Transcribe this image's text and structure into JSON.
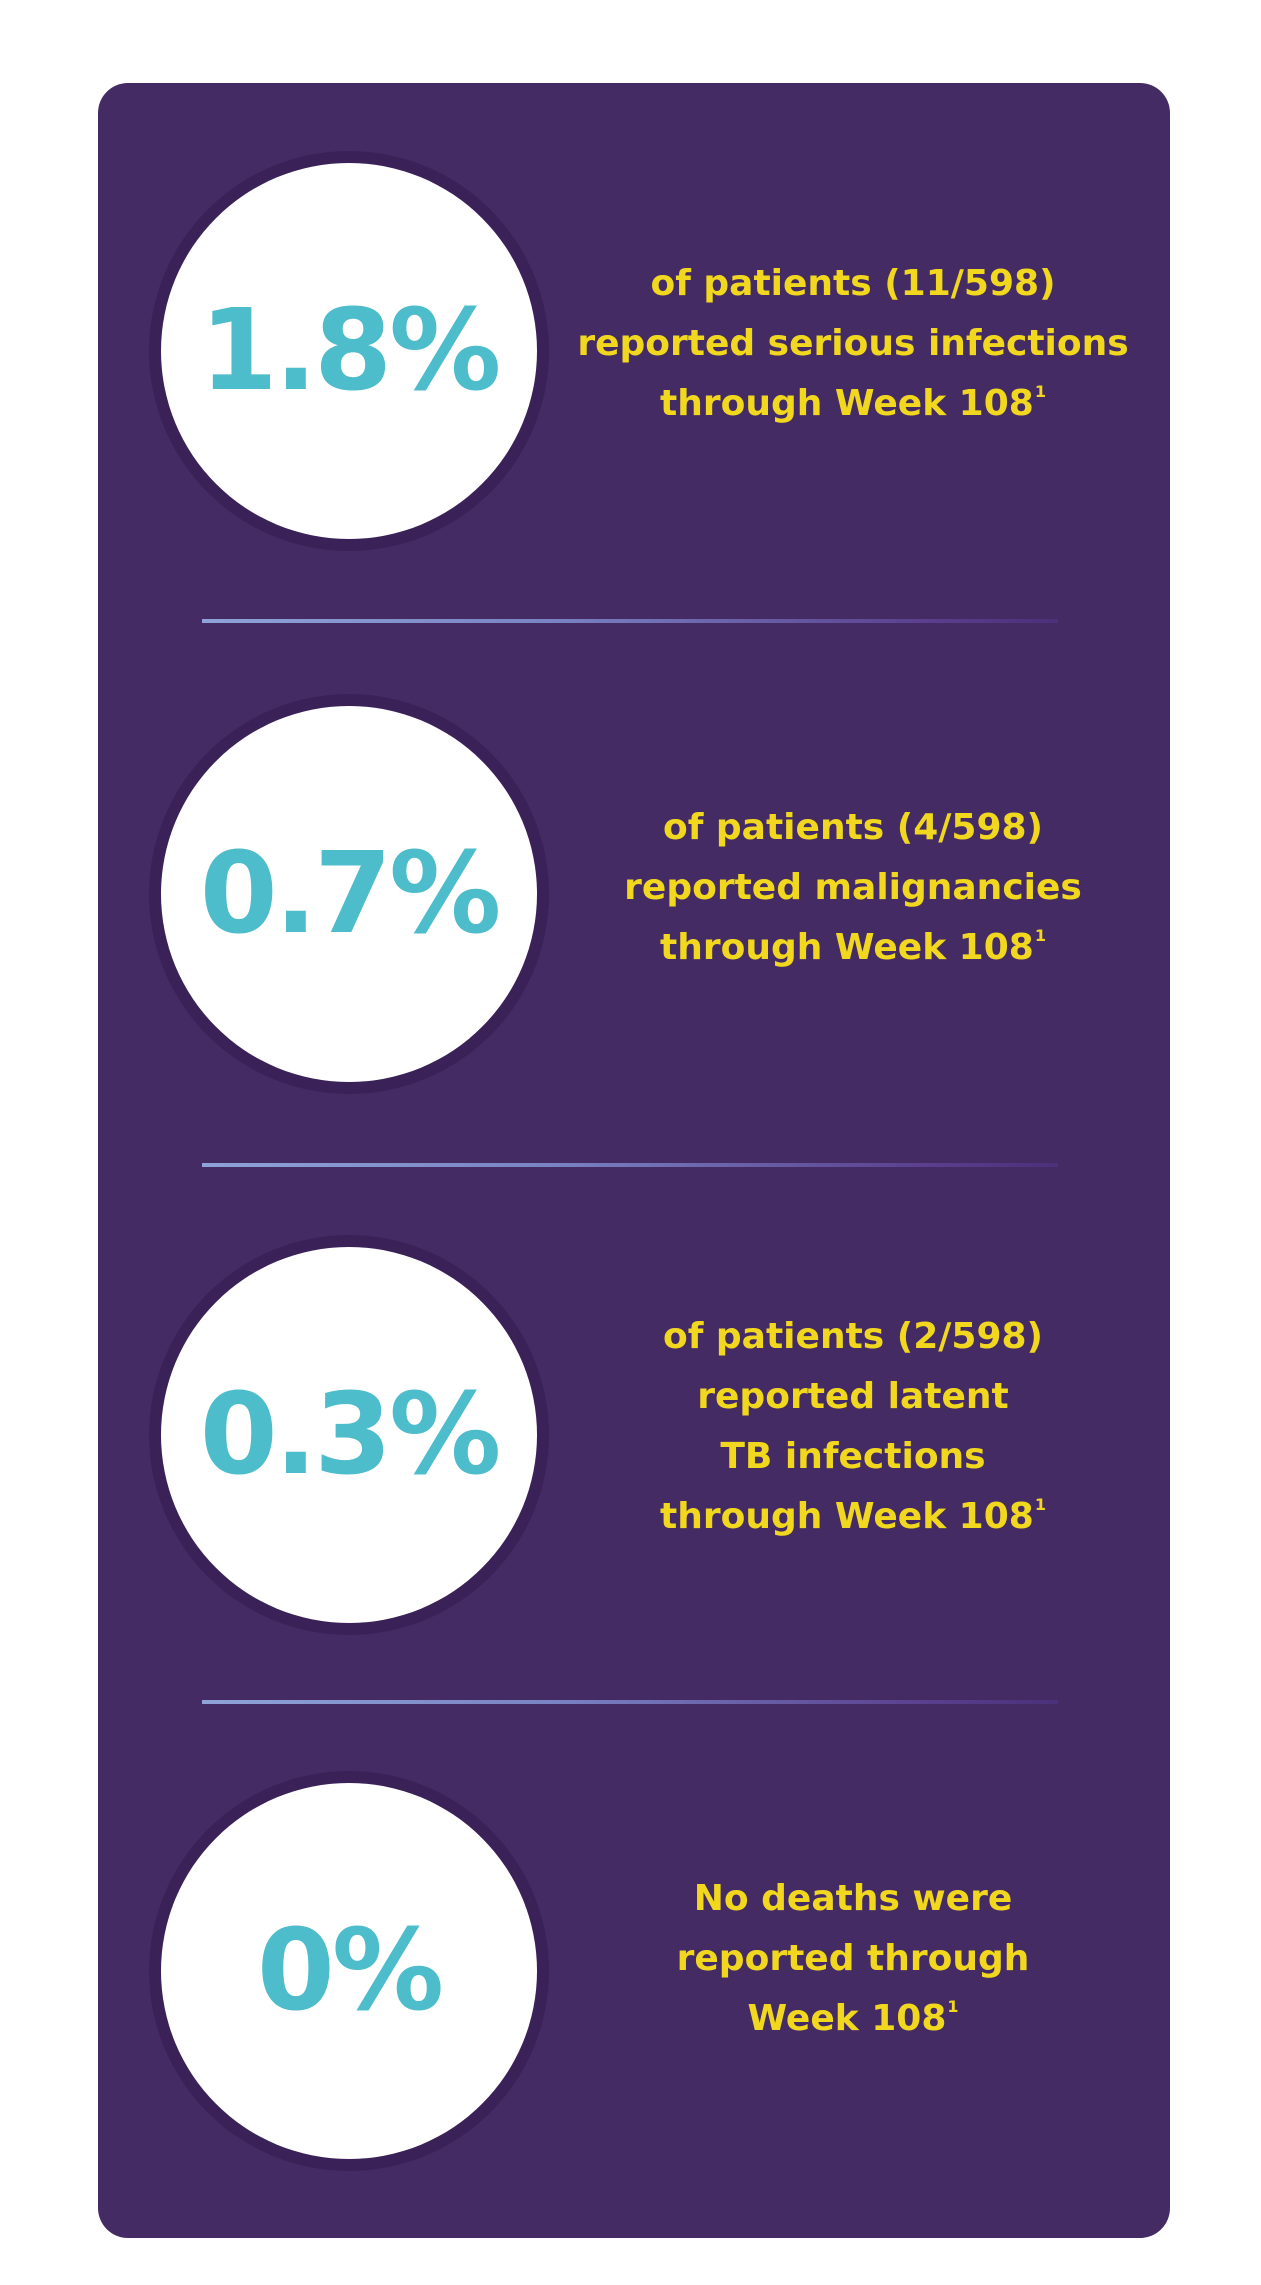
{
  "stats": [
    {
      "value": "1.8%",
      "lines": [
        "of patients (11/598)",
        "reported serious infections",
        "through Week 108"
      ],
      "footnote": "1"
    },
    {
      "value": "0.7%",
      "lines": [
        "of patients (4/598)",
        "reported malignancies",
        "through Week 108"
      ],
      "footnote": "1"
    },
    {
      "value": "0.3%",
      "lines": [
        "of patients (2/598)",
        "reported latent",
        "TB infections",
        "through Week 108"
      ],
      "footnote": "1"
    },
    {
      "value": "0%",
      "lines": [
        "No deaths were",
        "reported through",
        "Week 108"
      ],
      "footnote": "1"
    }
  ],
  "colors": {
    "panel": "#442b64",
    "stat": "#4dbccb",
    "text": "#f1d81e"
  }
}
